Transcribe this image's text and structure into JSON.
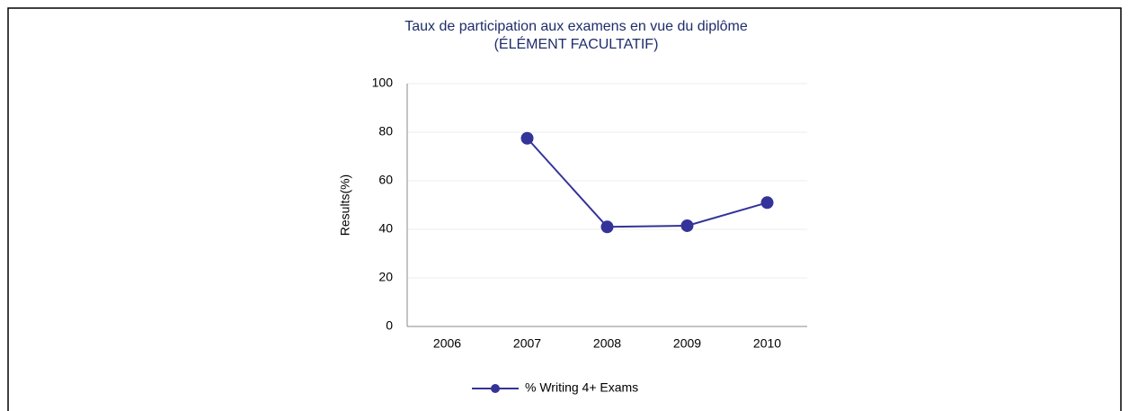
{
  "chart_data": {
    "type": "line",
    "title": "Taux de participation aux examens en vue du diplôme",
    "subtitle": "(ÉLÉMENT FACULTATIF)",
    "y_label": "Results(%)",
    "categories": [
      "2006",
      "2007",
      "2008",
      "2009",
      "2010"
    ],
    "series": [
      {
        "name": "% Writing 4+ Exams",
        "color": "#333399",
        "values": [
          null,
          77.5,
          41,
          41.5,
          51
        ]
      }
    ],
    "ylim": [
      0,
      100
    ],
    "yticks": [
      0,
      20,
      40,
      60,
      80,
      100
    ],
    "grid": true,
    "legend": "bottom"
  }
}
